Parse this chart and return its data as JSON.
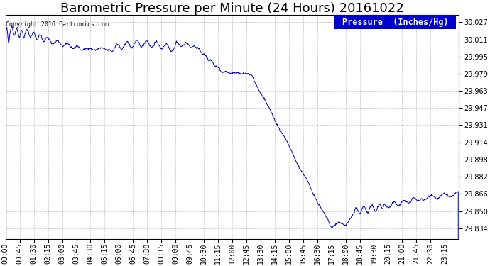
{
  "title": "Barometric Pressure per Minute (24 Hours) 20161022",
  "copyright_text": "Copyright 2016 Cartronics.com",
  "legend_text": "Pressure  (Inches/Hg)",
  "line_color": "#0000bb",
  "background_color": "#ffffff",
  "grid_color": "#aaaaaa",
  "yticks": [
    29.834,
    29.85,
    29.866,
    29.882,
    29.898,
    29.914,
    29.931,
    29.947,
    29.963,
    29.979,
    29.995,
    30.011,
    30.027
  ],
  "ylim": [
    29.824,
    30.034
  ],
  "xtick_labels": [
    "00:00",
    "00:45",
    "01:30",
    "02:15",
    "03:00",
    "03:45",
    "04:30",
    "05:15",
    "06:00",
    "06:45",
    "07:30",
    "08:15",
    "09:00",
    "09:45",
    "10:30",
    "11:15",
    "12:00",
    "12:45",
    "13:30",
    "14:15",
    "15:00",
    "15:45",
    "16:30",
    "17:15",
    "18:00",
    "18:45",
    "19:30",
    "20:15",
    "21:00",
    "21:45",
    "22:30",
    "23:15"
  ],
  "title_fontsize": 13,
  "tick_fontsize": 7,
  "copyright_fontsize": 6,
  "legend_fontsize": 8.5
}
